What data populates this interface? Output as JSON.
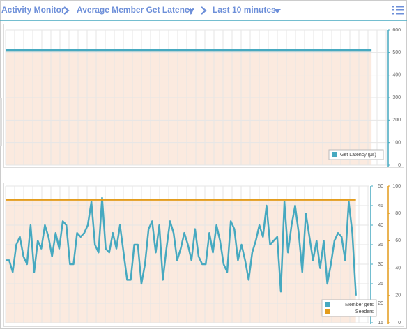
{
  "header": {
    "items": [
      "Activity Monitor",
      "Average Member Get Latency",
      "Last 10 minutes"
    ]
  },
  "chart_data": [
    {
      "type": "line",
      "categories": [
        null,
        null,
        null,
        null,
        null,
        null,
        null,
        null,
        null,
        null,
        null,
        null,
        null,
        null,
        null,
        null,
        null,
        null,
        null,
        null
      ],
      "series": [
        {
          "name": "Get Latency (µs)",
          "color": "#46a9c0",
          "fill": "#fbeadf",
          "values": [
            510,
            510,
            510,
            510,
            510,
            510,
            510,
            510,
            510,
            510,
            510,
            510,
            510,
            510,
            510,
            510,
            510,
            510,
            510,
            510
          ]
        }
      ],
      "ylim": [
        0,
        600
      ],
      "yticks": [
        0,
        100,
        200,
        300,
        400,
        500,
        600
      ],
      "grid": true,
      "legend": "lower right"
    },
    {
      "type": "line",
      "categories": [
        null,
        null,
        null,
        null,
        null,
        null,
        null,
        null,
        null,
        null,
        null,
        null,
        null,
        null,
        null,
        null,
        null,
        null,
        null,
        null,
        null,
        null,
        null,
        null,
        null,
        null,
        null,
        null,
        null,
        null,
        null,
        null,
        null,
        null,
        null,
        null,
        null,
        null,
        null,
        null,
        null,
        null,
        null,
        null,
        null,
        null,
        null,
        null,
        null,
        null,
        null,
        null,
        null,
        null,
        null,
        null,
        null,
        null,
        null,
        null,
        null,
        null,
        null,
        null,
        null,
        null,
        null,
        null,
        null,
        null,
        null,
        null,
        null,
        null,
        null,
        null,
        null,
        null,
        null,
        null,
        null,
        null,
        null,
        null,
        null,
        null,
        null,
        null,
        null,
        null,
        null,
        null,
        null,
        null,
        null,
        null,
        null,
        null,
        null
      ],
      "series": [
        {
          "name": "Member gets",
          "color": "#46a9c0",
          "values": [
            31,
            31,
            28,
            35,
            37,
            32,
            30,
            40,
            28,
            36,
            34,
            40,
            37,
            32,
            38,
            34,
            41,
            40,
            30,
            30,
            38,
            37,
            38,
            40,
            46,
            35,
            33,
            47,
            34,
            33,
            38,
            34,
            40,
            33,
            26,
            26,
            35,
            35,
            25,
            30,
            39,
            41,
            33,
            40,
            26,
            34,
            41,
            38,
            31,
            34,
            38,
            35,
            31,
            39,
            32,
            30,
            30,
            38,
            33,
            40,
            36,
            30,
            28,
            41,
            39,
            31,
            35,
            31,
            26,
            33,
            36,
            40,
            37,
            45,
            35,
            36,
            37,
            23,
            46,
            33,
            40,
            45,
            38,
            28,
            43,
            37,
            31,
            36,
            29,
            36,
            25,
            30,
            36,
            38,
            37,
            31,
            46,
            38,
            22
          ]
        },
        {
          "name": "Seeders",
          "color": "#e39c1c",
          "fill": "#fbeadf",
          "axis": "y2",
          "values": [
            90,
            90,
            90,
            90,
            90,
            90,
            90,
            90,
            90,
            90,
            90,
            90,
            90,
            90,
            90,
            90,
            90,
            90,
            90,
            90,
            90,
            90,
            90,
            90,
            90,
            90,
            90,
            90,
            90,
            90,
            90,
            90,
            90,
            90,
            90,
            90,
            90,
            90,
            90,
            90,
            90,
            90,
            90,
            90,
            90,
            90,
            90,
            90,
            90,
            90,
            90,
            90,
            90,
            90,
            90,
            90,
            90,
            90,
            90,
            90,
            90,
            90,
            90,
            90,
            90,
            90,
            90,
            90,
            90,
            90,
            90,
            90,
            90,
            90,
            90,
            90,
            90,
            90,
            90,
            90,
            90,
            90,
            90,
            90,
            90,
            90,
            90,
            90,
            90,
            90,
            90,
            90,
            90,
            90,
            90,
            90,
            90,
            90,
            90
          ]
        }
      ],
      "ylim": [
        15,
        50
      ],
      "yticks": [
        15,
        20,
        25,
        30,
        35,
        40,
        45,
        50
      ],
      "y2lim": [
        0,
        100
      ],
      "y2ticks": [
        0,
        20,
        40,
        60,
        80,
        100
      ],
      "grid": true,
      "legend": "lower right"
    }
  ]
}
